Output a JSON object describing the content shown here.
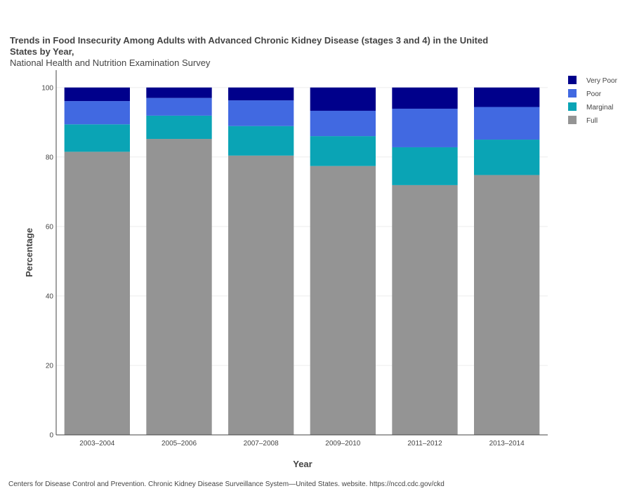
{
  "chart_data": {
    "type": "bar",
    "stacked": true,
    "title": "Trends in Food Insecurity Among Adults with Advanced Chronic Kidney Disease (stages 3 and 4) in the United States by Year,",
    "subtitle": "National Health and Nutrition Examination Survey",
    "xlabel": "Year",
    "ylabel": "Percentage",
    "ylim": [
      0,
      105
    ],
    "yticks": [
      0,
      20,
      40,
      60,
      80,
      100
    ],
    "grid": true,
    "legend_position": "top-right",
    "categories": [
      "2003–2004",
      "2005–2006",
      "2007–2008",
      "2009–2010",
      "2011–2012",
      "2013–2014"
    ],
    "series": [
      {
        "name": "Full",
        "color": "#949494",
        "values": [
          81.5,
          85.2,
          80.4,
          77.4,
          71.9,
          74.8
        ]
      },
      {
        "name": "Marginal",
        "color": "#0aa4b5",
        "values": [
          7.9,
          6.7,
          8.5,
          8.6,
          10.9,
          10.2
        ]
      },
      {
        "name": "Poor",
        "color": "#4169e1",
        "values": [
          6.7,
          5.1,
          7.4,
          7.3,
          11.1,
          9.4
        ]
      },
      {
        "name": "Very Poor",
        "color": "#00008b",
        "values": [
          3.9,
          3.0,
          3.7,
          6.7,
          6.1,
          5.6
        ]
      }
    ],
    "legend_order": [
      "Very Poor",
      "Poor",
      "Marginal",
      "Full"
    ]
  },
  "source": "Centers for Disease Control and Prevention. Chronic Kidney Disease Surveillance System—United States. website. https://nccd.cdc.gov/ckd"
}
